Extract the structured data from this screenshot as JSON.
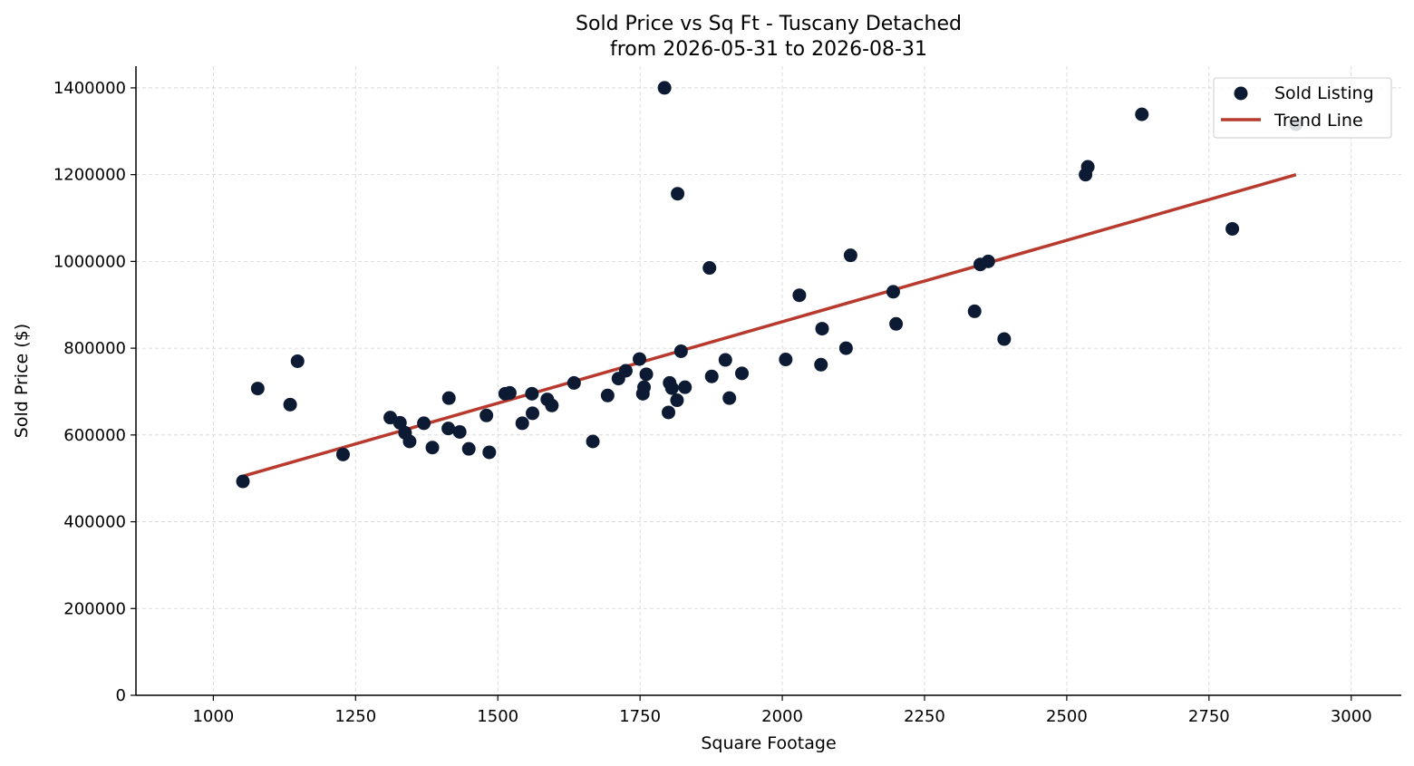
{
  "chart_data": {
    "type": "scatter",
    "title": [
      "Sold Price vs Sq Ft - Tuscany Detached",
      "from 2026-05-31 to 2026-08-31"
    ],
    "xlabel": "Square Footage",
    "ylabel": "Sold Price ($)",
    "xlim": [
      864,
      3088
    ],
    "ylim": [
      0,
      1450000
    ],
    "x_ticks": [
      1000,
      1250,
      1500,
      1750,
      2000,
      2250,
      2500,
      2750,
      3000
    ],
    "y_ticks": [
      0,
      200000,
      400000,
      600000,
      800000,
      1000000,
      1200000,
      1400000
    ],
    "grid": true,
    "legend_position": "top-right",
    "series": [
      {
        "name": "Sold Listing",
        "kind": "scatter",
        "color": "#0c1b33",
        "points": [
          [
            1052,
            493000
          ],
          [
            1078,
            707000
          ],
          [
            1135,
            670000
          ],
          [
            1148,
            770000
          ],
          [
            1228,
            555000
          ],
          [
            1311,
            640000
          ],
          [
            1328,
            628000
          ],
          [
            1337,
            605000
          ],
          [
            1345,
            585000
          ],
          [
            1370,
            627000
          ],
          [
            1385,
            571000
          ],
          [
            1413,
            615000
          ],
          [
            1414,
            685000
          ],
          [
            1433,
            607000
          ],
          [
            1449,
            568000
          ],
          [
            1480,
            645000
          ],
          [
            1485,
            560000
          ],
          [
            1513,
            695000
          ],
          [
            1521,
            697000
          ],
          [
            1543,
            627000
          ],
          [
            1560,
            695000
          ],
          [
            1561,
            650000
          ],
          [
            1587,
            682000
          ],
          [
            1595,
            668000
          ],
          [
            1634,
            720000
          ],
          [
            1667,
            585000
          ],
          [
            1693,
            691000
          ],
          [
            1712,
            730000
          ],
          [
            1725,
            748000
          ],
          [
            1749,
            775000
          ],
          [
            1755,
            695000
          ],
          [
            1757,
            710000
          ],
          [
            1761,
            740000
          ],
          [
            1793,
            1400000
          ],
          [
            1800,
            652000
          ],
          [
            1802,
            720000
          ],
          [
            1806,
            708000
          ],
          [
            1815,
            680000
          ],
          [
            1816,
            1156000
          ],
          [
            1822,
            793000
          ],
          [
            1829,
            710000
          ],
          [
            1872,
            985000
          ],
          [
            1876,
            735000
          ],
          [
            1900,
            773000
          ],
          [
            1907,
            685000
          ],
          [
            1929,
            742000
          ],
          [
            2006,
            774000
          ],
          [
            2030,
            922000
          ],
          [
            2068,
            762000
          ],
          [
            2070,
            845000
          ],
          [
            2112,
            800000
          ],
          [
            2120,
            1014000
          ],
          [
            2195,
            930000
          ],
          [
            2200,
            856000
          ],
          [
            2338,
            885000
          ],
          [
            2348,
            993000
          ],
          [
            2362,
            1000000
          ],
          [
            2390,
            821000
          ],
          [
            2533,
            1200000
          ],
          [
            2537,
            1218000
          ],
          [
            2632,
            1339000
          ],
          [
            2791,
            1075000
          ],
          [
            2903,
            1316000
          ]
        ]
      },
      {
        "name": "Trend Line",
        "kind": "line",
        "color": "#b83a2e",
        "points": [
          [
            1052,
            505000
          ],
          [
            2903,
            1200000
          ]
        ]
      }
    ]
  }
}
